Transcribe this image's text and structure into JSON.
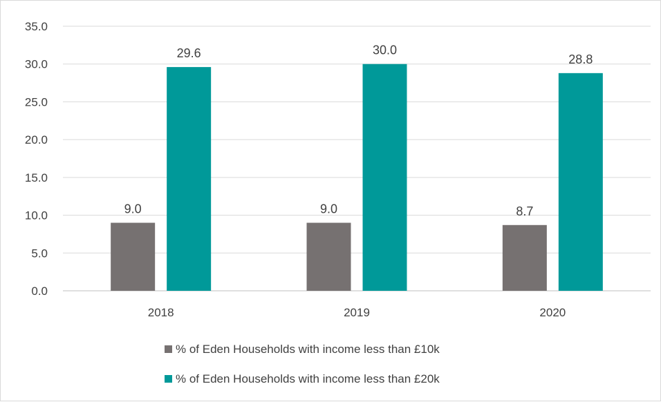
{
  "chart_data": {
    "type": "bar",
    "categories": [
      "2018",
      "2019",
      "2020"
    ],
    "series": [
      {
        "name": "% of Eden Households with income less than £10k",
        "values": [
          9.0,
          9.0,
          8.7
        ],
        "color": "#767171"
      },
      {
        "name": "% of Eden Households with income less than £20k",
        "values": [
          29.6,
          30.0,
          28.8
        ],
        "color": "#009999"
      }
    ],
    "ylim": [
      0,
      35
    ],
    "yticks": [
      "0.0",
      "5.0",
      "10.0",
      "15.0",
      "20.0",
      "25.0",
      "30.0",
      "35.0"
    ],
    "data_labels": [
      [
        "9.0",
        "9.0",
        "8.7"
      ],
      [
        "29.6",
        "30.0",
        "28.8"
      ]
    ],
    "grid": true,
    "legend_position": "bottom",
    "gridline_color": "#d9d9d9",
    "axis_color": "#bfbfbf"
  }
}
